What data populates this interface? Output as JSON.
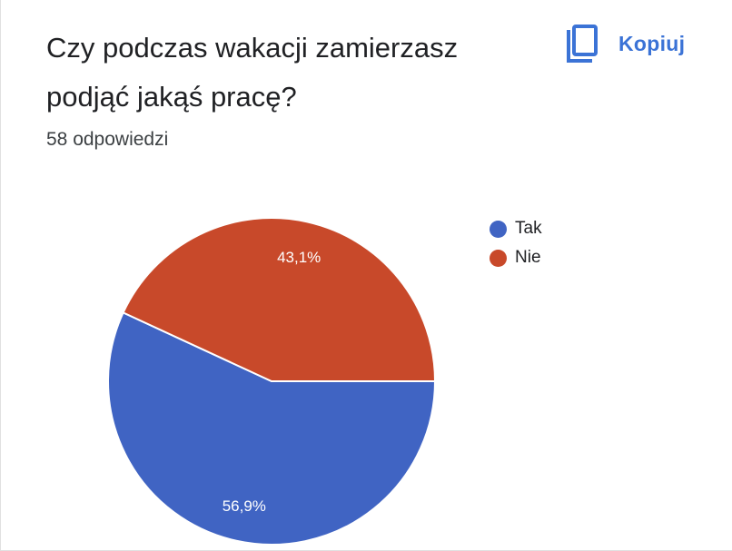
{
  "question": {
    "title": "Czy podczas wakacji zamierzasz podjąć jakąś pracę?",
    "response_count": "58 odpowiedzi"
  },
  "copy_button": {
    "label": "Kopiuj",
    "icon": "copy-icon"
  },
  "colors": {
    "accent": "#3b73d6",
    "tak": "#4064c3",
    "nie": "#c8492a"
  },
  "chart_data": {
    "type": "pie",
    "title": "",
    "categories": [
      "Tak",
      "Nie"
    ],
    "values": [
      56.9,
      43.1
    ],
    "data_labels": [
      "56,9%",
      "43,1%"
    ],
    "colors": [
      "#4064c3",
      "#c8492a"
    ],
    "legend_position": "right"
  }
}
